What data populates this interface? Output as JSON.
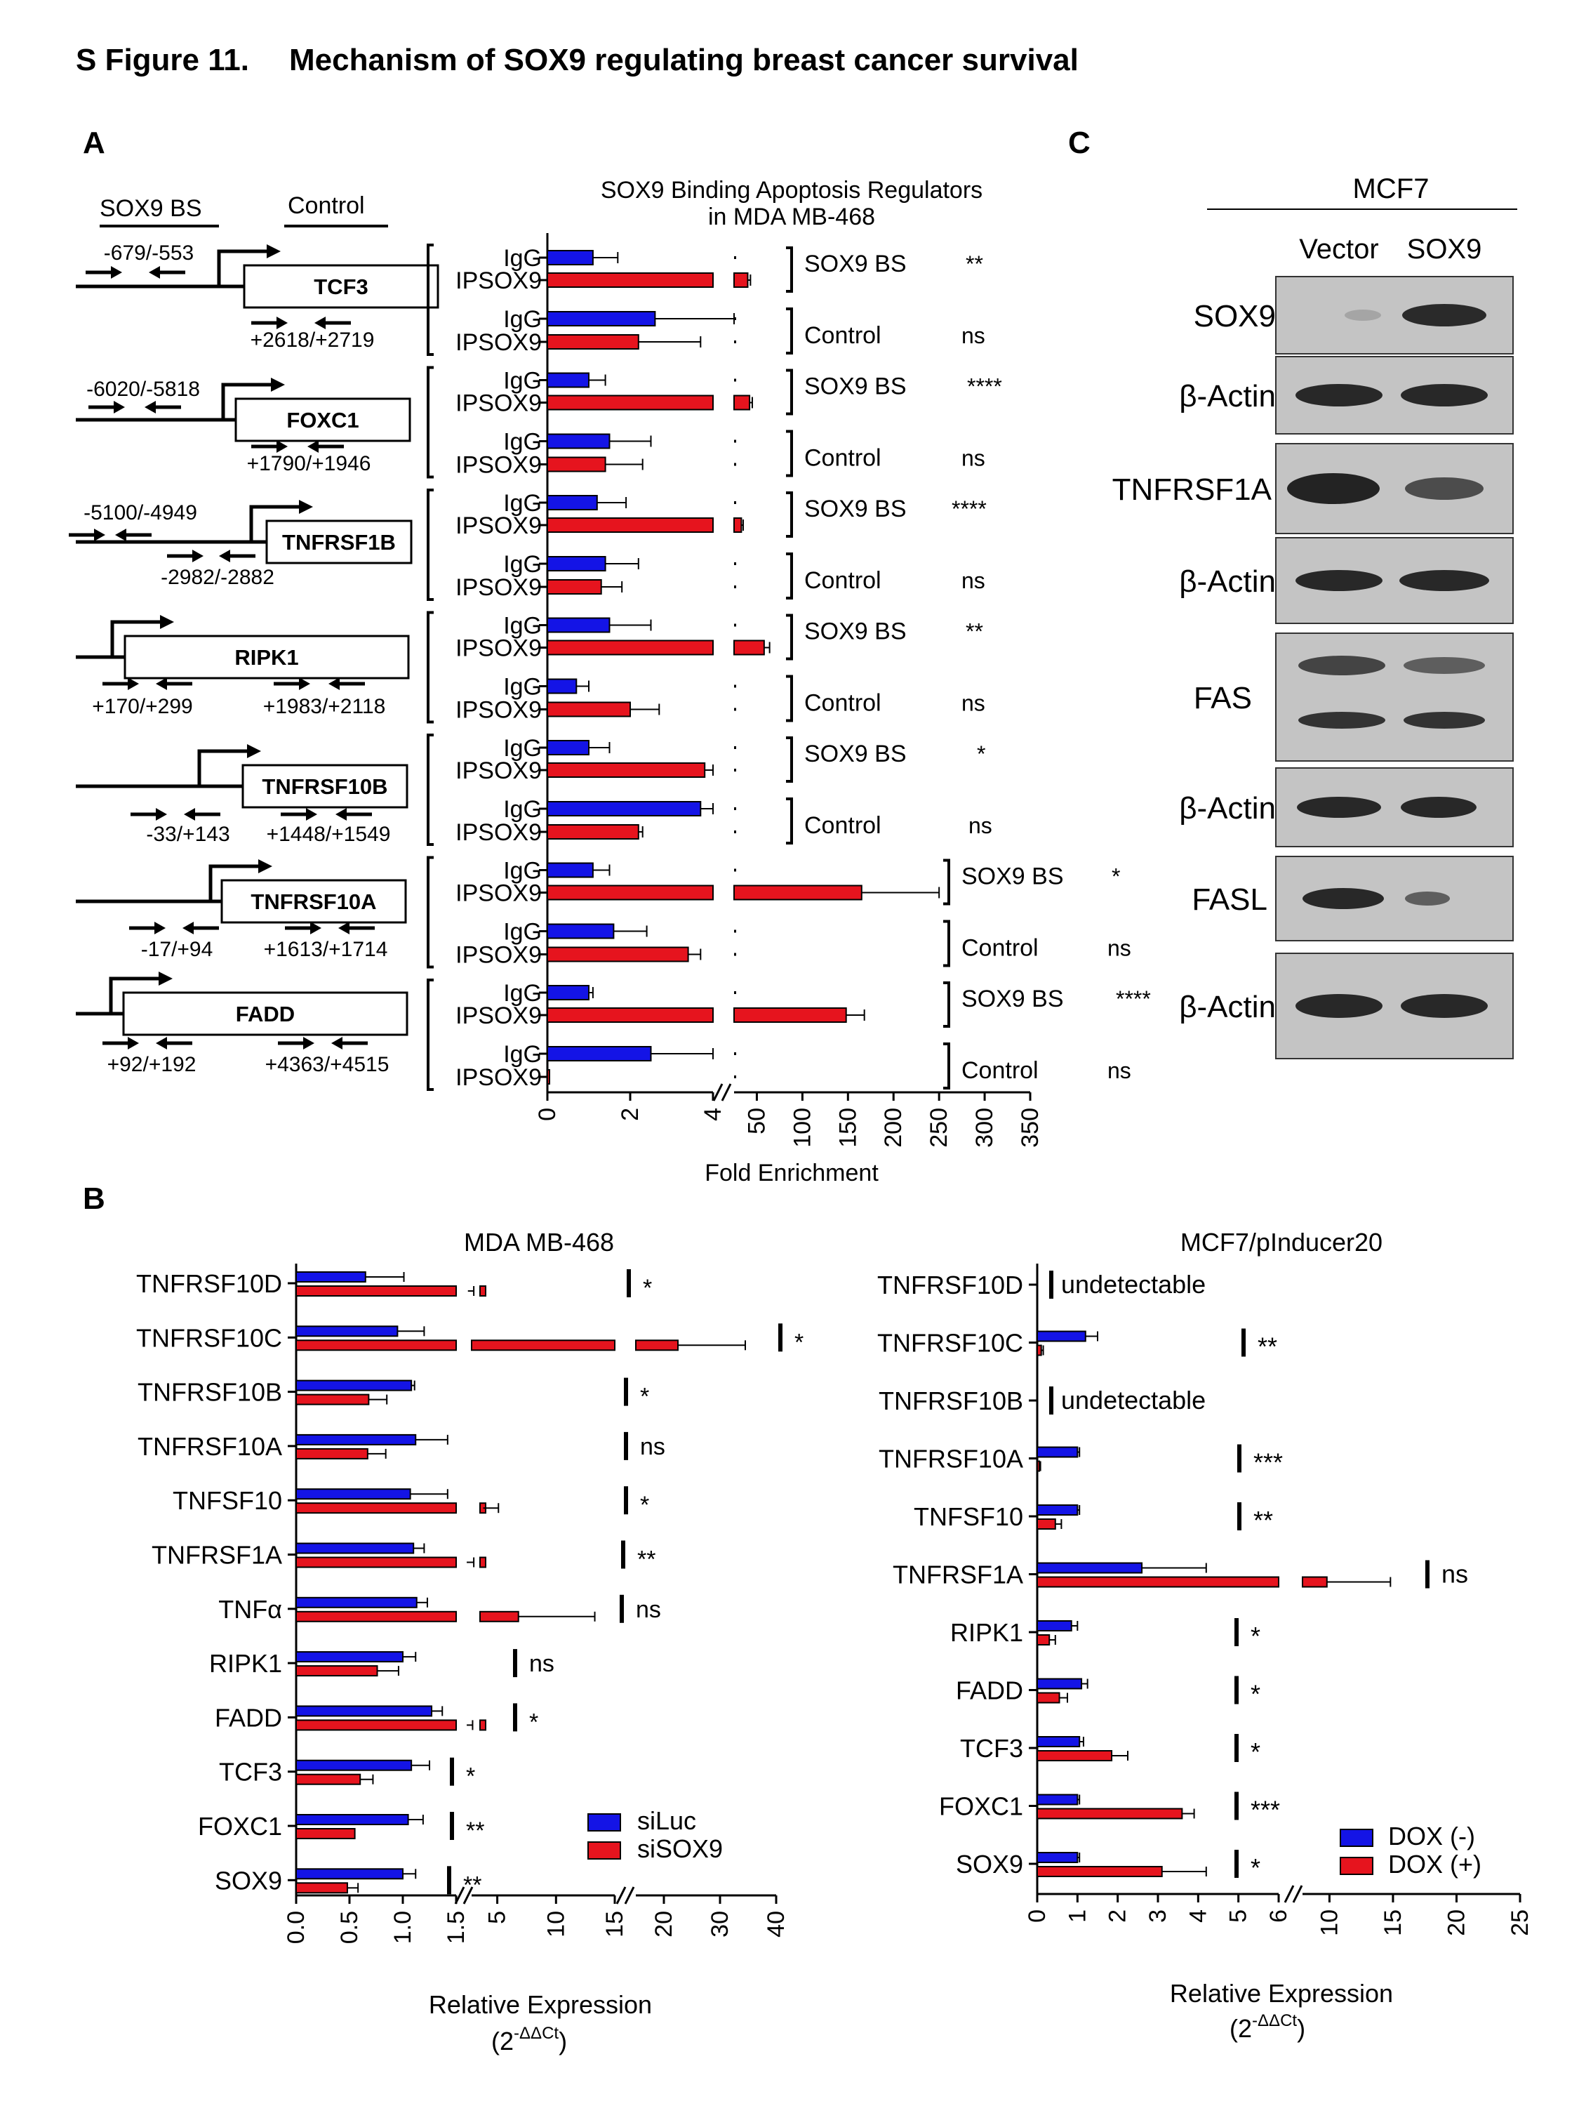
{
  "figure": {
    "label": "S Figure 11.",
    "title": "Mechanism of SOX9 regulating breast cancer survival"
  },
  "panel_a": {
    "label": "A",
    "legend_sox9_bs": "SOX9 BS",
    "legend_control": "Control",
    "schematics": [
      {
        "gene": "TCF3",
        "bs_coord": "-679/-553",
        "ctrl_coord": "+2618/+2719"
      },
      {
        "gene": "FOXC1",
        "bs_coord": "-6020/-5818",
        "ctrl_coord": "+1790/+1946"
      },
      {
        "gene": "TNFRSF1B",
        "bs_coord": "-5100/-4949",
        "ctrl_coord": "-2982/-2882"
      },
      {
        "gene": "RIPK1",
        "bs_coord": "+170/+299",
        "ctrl_coord": "+1983/+2118"
      },
      {
        "gene": "TNFRSF10B",
        "bs_coord": "-33/+143",
        "ctrl_coord": "+1448/+1549"
      },
      {
        "gene": "TNFRSF10A",
        "bs_coord": "-17/+94",
        "ctrl_coord": "+1613/+1714"
      },
      {
        "gene": "FADD",
        "bs_coord": "+92/+192",
        "ctrl_coord": "+4363/+4515"
      }
    ]
  },
  "panel_b": {
    "label": "B"
  },
  "panel_c": {
    "label": "C",
    "cell_line": "MCF7",
    "lanes": [
      "Vector",
      "SOX9"
    ],
    "rows": [
      "SOX9",
      "β-Actin",
      "TNFRSF1A",
      "β-Actin",
      "FAS",
      "β-Actin",
      "FASL",
      "β-Actin"
    ]
  },
  "chart_data": [
    {
      "type": "bar",
      "title": "SOX9 Binding Apoptosis Regulators in MDA MB-468",
      "title_lines": [
        "SOX9 Binding Apoptosis Regulators",
        "in MDA MB-468"
      ],
      "xlabel": "Fold Enrichment",
      "x_ticks_left": [
        "0",
        "2",
        "4"
      ],
      "x_ticks_right": [
        "50",
        "100",
        "150",
        "200",
        "250",
        "300",
        "350"
      ],
      "xlim_segments": [
        [
          0,
          4
        ],
        [
          25,
          350
        ]
      ],
      "bar_labels": [
        "IgG",
        "IPSOX9",
        "IgG",
        "IPSOX9"
      ],
      "colors": {
        "IgG": "#1414e6",
        "IPSOX9": "#e6141e"
      },
      "region_labels": [
        "SOX9 BS",
        "Control"
      ],
      "groups": [
        {
          "gene": "TCF3",
          "values": [
            1.1,
            40,
            2.6,
            2.2
          ],
          "errors": [
            0.6,
            3,
            2.8,
            1.5
          ],
          "sig": [
            "**",
            "ns"
          ]
        },
        {
          "gene": "FOXC1",
          "values": [
            1.0,
            42,
            1.5,
            1.4
          ],
          "errors": [
            0.4,
            3,
            1.0,
            0.9
          ],
          "sig": [
            "****",
            "ns"
          ]
        },
        {
          "gene": "TNFRSF1B",
          "values": [
            1.2,
            33,
            1.4,
            1.3
          ],
          "errors": [
            0.7,
            2,
            0.8,
            0.5
          ],
          "sig": [
            "****",
            "ns"
          ]
        },
        {
          "gene": "RIPK1",
          "values": [
            1.5,
            58,
            0.7,
            2.0
          ],
          "errors": [
            1.0,
            6,
            0.3,
            0.7
          ],
          "sig": [
            "**",
            "ns"
          ]
        },
        {
          "gene": "TNFRSF10B",
          "values": [
            1.0,
            3.8,
            3.7,
            2.2
          ],
          "errors": [
            0.5,
            0.2,
            0.3,
            0.1
          ],
          "sig": [
            "*",
            "ns"
          ]
        },
        {
          "gene": "TNFRSF10A",
          "values": [
            1.1,
            165,
            1.6,
            3.4
          ],
          "errors": [
            0.4,
            85,
            0.8,
            0.3
          ],
          "sig": [
            "*",
            "ns"
          ]
        },
        {
          "gene": "FADD",
          "values": [
            1.0,
            148,
            2.5,
            0.05
          ],
          "errors": [
            0.1,
            20,
            1.5,
            0
          ],
          "sig": [
            "****",
            "ns"
          ]
        }
      ]
    },
    {
      "type": "bar",
      "title": "MDA MB-468",
      "xlabel": "Relative Expression",
      "xlabel_line2": "(2",
      "xlabel_sup": "-ΔΔCt",
      "xlabel_close": ")",
      "x_ticks": [
        "0.0",
        "0.5",
        "1.0",
        "1.5",
        "5",
        "10",
        "15",
        "20",
        "30",
        "40"
      ],
      "xlim_segments": [
        [
          0,
          1.5
        ],
        [
          1.5,
          15
        ],
        [
          15,
          40
        ]
      ],
      "series": [
        {
          "name": "siLuc",
          "color": "#1414e6"
        },
        {
          "name": "siSOX9",
          "color": "#e6141e"
        }
      ],
      "categories": [
        "TNFRSF10D",
        "TNFRSF10C",
        "TNFRSF10B",
        "TNFRSF10A",
        "TNFSF10",
        "TNFRSF1A",
        "TNFα",
        "RIPK1",
        "FADD",
        "TCF3",
        "FOXC1",
        "SOX9"
      ],
      "siLuc": [
        0.65,
        0.95,
        1.08,
        1.12,
        1.07,
        1.1,
        1.13,
        1.0,
        1.27,
        1.08,
        1.05,
        1.0
      ],
      "siLuc_err": [
        0.36,
        0.25,
        0.03,
        0.3,
        0.35,
        0.1,
        0.1,
        0.12,
        0.1,
        0.17,
        0.14,
        0.12
      ],
      "siSOX9": [
        2.5,
        22.5,
        0.68,
        0.67,
        3.8,
        2.4,
        6.8,
        0.76,
        2.4,
        0.6,
        0.55,
        0.48
      ],
      "siSOX9_err": [
        0.5,
        12,
        0.17,
        0.17,
        1.3,
        0.6,
        6.5,
        0.2,
        0.5,
        0.12,
        0,
        0.1
      ],
      "sig": [
        "*",
        "*",
        "*",
        "ns",
        "*",
        "**",
        "ns",
        "ns",
        "*",
        "*",
        "**",
        "**"
      ]
    },
    {
      "type": "bar",
      "title": "MCF7/pInducer20",
      "xlabel": "Relative Expression",
      "xlabel_line2": "(2",
      "xlabel_sup": "-ΔΔCt",
      "xlabel_close": ")",
      "x_ticks": [
        "0",
        "1",
        "2",
        "3",
        "4",
        "5",
        "6",
        "10",
        "15",
        "20",
        "25"
      ],
      "xlim_segments": [
        [
          0,
          6
        ],
        [
          6,
          25
        ]
      ],
      "series": [
        {
          "name": "DOX (-)",
          "color": "#1414e6"
        },
        {
          "name": "DOX (+)",
          "color": "#e6141e"
        }
      ],
      "categories": [
        "TNFRSF10D",
        "TNFRSF10C",
        "TNFRSF10B",
        "TNFRSF10A",
        "TNFSF10",
        "TNFRSF1A",
        "RIPK1",
        "FADD",
        "TCF3",
        "FOXC1",
        "SOX9"
      ],
      "dox_minus": [
        null,
        1.2,
        null,
        1.0,
        1.0,
        2.6,
        0.85,
        1.1,
        1.05,
        1.0,
        1.0
      ],
      "dox_minus_err": [
        0,
        0.3,
        0,
        0.05,
        0.05,
        1.6,
        0.15,
        0.15,
        0.1,
        0.05,
        0.05
      ],
      "dox_plus": [
        null,
        0.1,
        null,
        0.05,
        0.45,
        9.8,
        0.3,
        0.55,
        1.85,
        3.6,
        3.1
      ],
      "dox_plus_err": [
        0,
        0.05,
        0,
        0.03,
        0.15,
        5,
        0.15,
        0.2,
        0.4,
        0.3,
        1.1
      ],
      "sig": [
        "undetectable",
        "**",
        "undetectable",
        "***",
        "**",
        "ns",
        "*",
        "*",
        "*",
        "***",
        "*"
      ]
    }
  ]
}
